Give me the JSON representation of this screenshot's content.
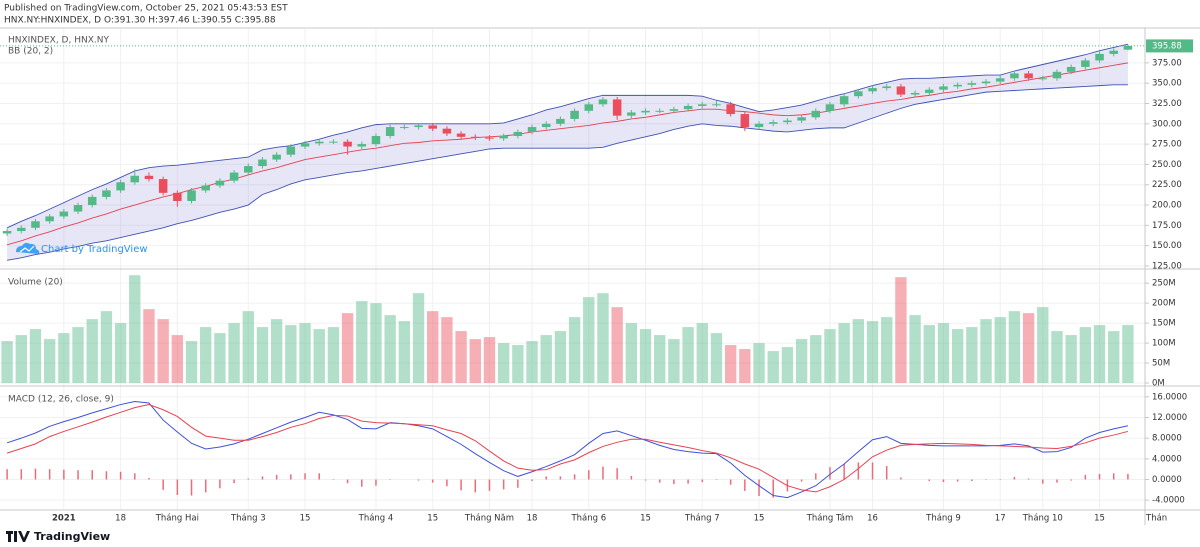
{
  "header": {
    "published": "Published on TradingView.com, October 25, 2021 05:43:53 EST",
    "symbol_line": "HNX.NY:HNXINDEX, D O:391.30 H:397.46 L:390.55 C:395.88"
  },
  "watermark": "Chart by TradingView",
  "footer": "TradingView",
  "x_cut_label": "Thán",
  "chart_data": [
    {
      "type": "candlestick",
      "title": "HNXINDEX, D, HNX.NY",
      "indicator": "BB (20, 2)",
      "up_color": "#53b987",
      "down_color": "#eb4d5c",
      "grid": true,
      "categories": [
        null,
        null,
        null,
        null,
        "2021",
        null,
        null,
        null,
        "18",
        null,
        null,
        null,
        "Tháng Hai",
        null,
        null,
        null,
        null,
        "Tháng 3",
        null,
        null,
        null,
        "15",
        null,
        null,
        null,
        null,
        "Tháng 4",
        null,
        null,
        null,
        "15",
        null,
        null,
        null,
        "Tháng Năm",
        null,
        null,
        "18",
        null,
        null,
        null,
        "Tháng 6",
        null,
        null,
        null,
        "15",
        null,
        null,
        null,
        "Tháng 7",
        null,
        null,
        null,
        "15",
        null,
        null,
        null,
        null,
        "Tháng Tám",
        null,
        null,
        "16",
        null,
        null,
        null,
        null,
        "Tháng 9",
        null,
        null,
        null,
        "17",
        null,
        null,
        "Tháng 10",
        null,
        null,
        null,
        "15",
        null,
        null
      ],
      "open": [
        165,
        168,
        172,
        180,
        186,
        192,
        200,
        210,
        218,
        228,
        236,
        232,
        215,
        205,
        218,
        224,
        230,
        240,
        248,
        256,
        262,
        272,
        276,
        278,
        278,
        272,
        275,
        285,
        296,
        296,
        298,
        294,
        288,
        284,
        283,
        282,
        285,
        290,
        296,
        300,
        306,
        316,
        324,
        330,
        310,
        314,
        316,
        316,
        318,
        322,
        324,
        324,
        312,
        296,
        300,
        302,
        304,
        308,
        316,
        324,
        334,
        340,
        344,
        346,
        336,
        338,
        342,
        346,
        348,
        350,
        352,
        356,
        362,
        356,
        356,
        364,
        370,
        378,
        386,
        391.3
      ],
      "high": [
        171,
        175,
        183,
        189,
        195,
        203,
        213,
        221,
        231,
        244,
        240,
        235,
        218,
        221,
        227,
        233,
        243,
        251,
        259,
        265,
        275,
        279,
        281,
        281,
        281,
        278,
        288,
        299,
        299,
        301,
        301,
        297,
        291,
        287,
        286,
        288,
        293,
        299,
        303,
        309,
        319,
        327,
        333,
        333,
        317,
        319,
        319,
        321,
        325,
        327,
        328,
        327,
        315,
        303,
        305,
        307,
        311,
        319,
        327,
        337,
        343,
        347,
        349,
        349,
        341,
        345,
        349,
        351,
        353,
        355,
        359,
        365,
        365,
        359,
        367,
        373,
        381,
        389,
        393,
        397.46
      ],
      "low": [
        162,
        165,
        169,
        177,
        183,
        189,
        197,
        207,
        215,
        225,
        229,
        212,
        198,
        202,
        215,
        221,
        227,
        237,
        245,
        253,
        259,
        269,
        273,
        275,
        262,
        269,
        272,
        282,
        293,
        293,
        291,
        285,
        281,
        280,
        279,
        279,
        282,
        287,
        293,
        297,
        303,
        313,
        321,
        305,
        307,
        311,
        313,
        313,
        315,
        319,
        321,
        309,
        291,
        293,
        297,
        299,
        301,
        305,
        313,
        321,
        331,
        337,
        341,
        333,
        333,
        335,
        339,
        343,
        345,
        347,
        349,
        353,
        353,
        353,
        353,
        361,
        367,
        375,
        383,
        390.55
      ],
      "close": [
        168,
        172,
        180,
        186,
        192,
        200,
        210,
        218,
        228,
        236,
        232,
        215,
        205,
        218,
        224,
        230,
        240,
        248,
        256,
        262,
        272,
        276,
        278,
        278,
        272,
        275,
        285,
        296,
        296,
        298,
        294,
        288,
        284,
        283,
        282,
        285,
        290,
        296,
        300,
        306,
        316,
        324,
        330,
        310,
        314,
        316,
        316,
        318,
        322,
        324,
        324,
        312,
        296,
        300,
        302,
        304,
        308,
        316,
        324,
        334,
        340,
        344,
        346,
        336,
        338,
        342,
        346,
        348,
        350,
        352,
        356,
        362,
        356,
        356,
        364,
        370,
        378,
        386,
        390,
        395.88
      ],
      "bands": {
        "upper_color": "#3f51b5",
        "basis_color": "#e8424f",
        "lower_color": "#3f51b5",
        "fill_color": "#8c8fd8",
        "upper": [
          172,
          180,
          187,
          195,
          203,
          211,
          219,
          226,
          234,
          242,
          246,
          248,
          249,
          251,
          253,
          255,
          257,
          259,
          268,
          271,
          273,
          277,
          281,
          286,
          290,
          295,
          299,
          300,
          300,
          300,
          300,
          300,
          300,
          300,
          300,
          301,
          306,
          311,
          317,
          321,
          326,
          331,
          335,
          335,
          335,
          335,
          335,
          335,
          335,
          334,
          329,
          325,
          320,
          315,
          317,
          320,
          323,
          328,
          333,
          337,
          342,
          347,
          351,
          355,
          356,
          356,
          357,
          358,
          359,
          360,
          360,
          365,
          369,
          373,
          377,
          381,
          385,
          390,
          394,
          398
        ],
        "basis": [
          151,
          156,
          162,
          167,
          173,
          178,
          184,
          189,
          195,
          200,
          205,
          210,
          214,
          219,
          223,
          228,
          232,
          237,
          242,
          246,
          251,
          256,
          259,
          262,
          265,
          268,
          270,
          273,
          276,
          277,
          279,
          280,
          281,
          283,
          284,
          285,
          287,
          290,
          292,
          294,
          296,
          298,
          301,
          303,
          306,
          308,
          311,
          314,
          316,
          318,
          318,
          316,
          315,
          313,
          311,
          310,
          311,
          313,
          316,
          319,
          322,
          325,
          328,
          330,
          333,
          335,
          338,
          340,
          343,
          345,
          348,
          351,
          354,
          357,
          360,
          363,
          366,
          369,
          372,
          375
        ],
        "lower": [
          132,
          135,
          139,
          142,
          146,
          149,
          153,
          156,
          160,
          164,
          168,
          172,
          177,
          181,
          186,
          191,
          195,
          200,
          213,
          219,
          226,
          231,
          234,
          237,
          240,
          242,
          245,
          248,
          251,
          254,
          257,
          260,
          263,
          266,
          269,
          270,
          270,
          270,
          270,
          270,
          270,
          270,
          271,
          276,
          280,
          284,
          288,
          293,
          297,
          300,
          298,
          297,
          295,
          293,
          291,
          290,
          292,
          294,
          295,
          295,
          301,
          307,
          313,
          319,
          324,
          327,
          330,
          333,
          336,
          339,
          340,
          341,
          342,
          343,
          344,
          345,
          346,
          347,
          348,
          348
        ]
      },
      "ylim": [
        122.5,
        416.7
      ],
      "yticks": [
        {
          "value": 125,
          "label": "125.00"
        },
        {
          "value": 150,
          "label": "150.00"
        },
        {
          "value": 175,
          "label": "175.00"
        },
        {
          "value": 200,
          "label": "200.00"
        },
        {
          "value": 225,
          "label": "225.00"
        },
        {
          "value": 250,
          "label": "250.00"
        },
        {
          "value": 275,
          "label": "275.00"
        },
        {
          "value": 300,
          "label": "300.00"
        },
        {
          "value": 325,
          "label": "325.00"
        },
        {
          "value": 350,
          "label": "350.00"
        },
        {
          "value": 375,
          "label": "375.00"
        }
      ]
    },
    {
      "type": "bar",
      "title": "Volume (20)",
      "grid": true,
      "values": [
        105000000,
        120000000,
        135000000,
        110000000,
        125000000,
        140000000,
        160000000,
        180000000,
        150000000,
        270000000,
        185000000,
        160000000,
        120000000,
        105000000,
        140000000,
        125000000,
        150000000,
        180000000,
        140000000,
        160000000,
        145000000,
        150000000,
        135000000,
        140000000,
        175000000,
        205000000,
        200000000,
        170000000,
        155000000,
        225000000,
        180000000,
        165000000,
        130000000,
        110000000,
        115000000,
        100000000,
        95000000,
        105000000,
        120000000,
        130000000,
        165000000,
        215000000,
        225000000,
        190000000,
        150000000,
        135000000,
        120000000,
        110000000,
        140000000,
        150000000,
        125000000,
        95000000,
        85000000,
        100000000,
        80000000,
        90000000,
        110000000,
        120000000,
        135000000,
        150000000,
        160000000,
        155000000,
        165000000,
        265000000,
        170000000,
        145000000,
        150000000,
        135000000,
        140000000,
        160000000,
        165000000,
        180000000,
        175000000,
        190000000,
        130000000,
        120000000,
        140000000,
        145000000,
        130000000,
        145000000
      ],
      "ylim": [
        -5000000,
        283000000
      ],
      "yticks": [
        {
          "value": 0,
          "label": "0M"
        },
        {
          "value": 50000000,
          "label": "50M"
        },
        {
          "value": 100000000,
          "label": "100M"
        },
        {
          "value": 150000000,
          "label": "150M"
        },
        {
          "value": 200000000,
          "label": "200M"
        },
        {
          "value": 250000000,
          "label": "250M"
        }
      ]
    },
    {
      "type": "line",
      "title": "MACD (12, 26, close, 9)",
      "grid": true,
      "series": [
        {
          "color": "#3f51d8",
          "values": [
            7.1,
            8.0,
            9.0,
            10.3,
            11.2,
            12.0,
            12.9,
            13.7,
            14.5,
            15.1,
            14.8,
            11.5,
            9.2,
            7.0,
            5.9,
            6.3,
            6.9,
            7.8,
            8.9,
            10.0,
            11.1,
            12.0,
            13.0,
            12.5,
            11.6,
            9.9,
            9.8,
            11.0,
            10.8,
            10.4,
            9.8,
            8.3,
            6.8,
            5.0,
            3.3,
            1.7,
            0.6,
            1.5,
            2.5,
            3.6,
            4.8,
            7.0,
            8.9,
            9.4,
            8.5,
            7.6,
            6.6,
            5.8,
            5.4,
            5.1,
            5.0,
            3.2,
            0.8,
            -1.2,
            -3.1,
            -3.5,
            -2.4,
            -1.2,
            1.0,
            3.0,
            5.4,
            7.7,
            8.3,
            7.0,
            6.8,
            6.6,
            6.5,
            6.5,
            6.5,
            6.5,
            6.6,
            6.9,
            6.5,
            5.3,
            5.4,
            6.2,
            8.0,
            9.1,
            9.8,
            10.4
          ]
        },
        {
          "color": "#e8424f",
          "values": [
            5.1,
            6.0,
            6.9,
            8.3,
            9.3,
            10.2,
            11.1,
            12.1,
            13.0,
            13.9,
            14.5,
            13.5,
            12.2,
            10.1,
            8.4,
            8.0,
            7.6,
            7.6,
            8.3,
            9.1,
            10.1,
            10.8,
            11.8,
            12.4,
            12.3,
            11.3,
            11.0,
            10.9,
            10.8,
            10.6,
            10.4,
            9.6,
            8.9,
            7.5,
            5.5,
            3.6,
            2.2,
            1.8,
            1.9,
            3.0,
            3.8,
            5.2,
            6.4,
            7.2,
            7.8,
            7.8,
            7.2,
            6.7,
            6.2,
            5.6,
            5.1,
            4.2,
            3.0,
            2.0,
            0.4,
            -1.2,
            -2.0,
            -2.4,
            -1.4,
            0.0,
            2.1,
            4.4,
            5.7,
            6.6,
            6.8,
            6.9,
            7.0,
            6.9,
            6.8,
            6.6,
            6.5,
            6.4,
            6.3,
            6.1,
            6.0,
            6.4,
            7.1,
            8.0,
            8.6,
            9.3
          ]
        }
      ],
      "histogram": {
        "color": "#ef6a78",
        "values": [
          2.0,
          2.0,
          2.1,
          2.0,
          1.9,
          1.8,
          1.8,
          1.6,
          1.5,
          1.2,
          0.3,
          -2.0,
          -3.0,
          -3.1,
          -2.5,
          -1.7,
          -0.7,
          0.2,
          0.6,
          0.9,
          1.0,
          1.2,
          1.2,
          0.1,
          -0.7,
          -1.4,
          -1.2,
          0.1,
          0.0,
          -0.2,
          -0.6,
          -1.3,
          -2.1,
          -2.5,
          -2.2,
          -1.9,
          -1.6,
          -0.3,
          0.6,
          0.6,
          1.0,
          1.8,
          2.5,
          2.2,
          0.7,
          -0.2,
          -0.6,
          -0.9,
          -0.8,
          -0.5,
          -0.1,
          -1.0,
          -2.2,
          -3.2,
          -3.5,
          -2.3,
          -0.4,
          1.2,
          2.4,
          3.0,
          3.3,
          3.3,
          2.6,
          0.4,
          0.0,
          -0.3,
          -0.5,
          -0.4,
          -0.3,
          -0.1,
          0.1,
          0.5,
          0.2,
          -0.8,
          -0.6,
          -0.2,
          0.9,
          1.1,
          1.2,
          1.1
        ]
      },
      "ylim": [
        -5.9,
        17.9
      ],
      "yticks": [
        {
          "value": -4,
          "label": "-4.0000"
        },
        {
          "value": 0,
          "label": "0.0000"
        },
        {
          "value": 4,
          "label": "4.0000"
        },
        {
          "value": 8,
          "label": "8.0000"
        },
        {
          "value": 12,
          "label": "12.0000"
        },
        {
          "value": 16,
          "label": "16.0000"
        }
      ]
    }
  ]
}
